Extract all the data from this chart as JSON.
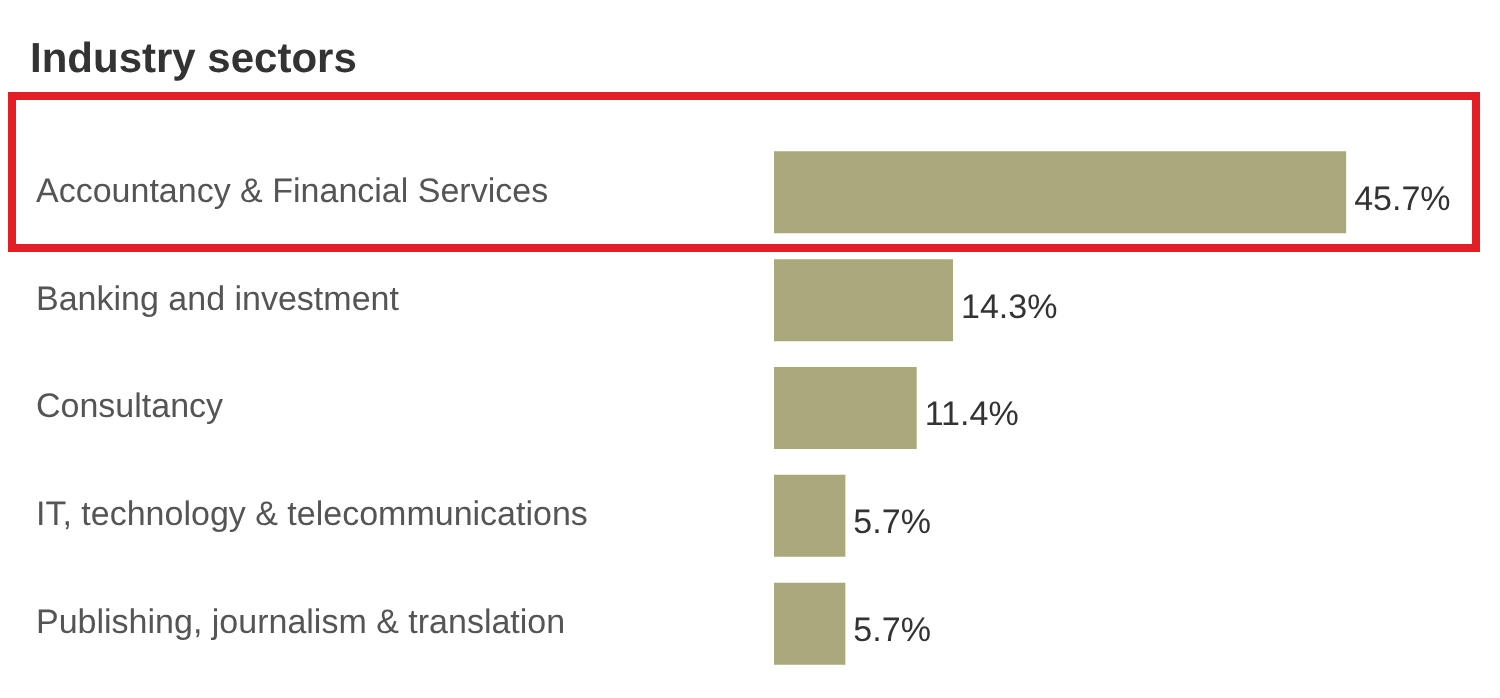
{
  "chart_data": {
    "type": "bar",
    "orientation": "horizontal",
    "title": "Industry sectors",
    "categories": [
      "Accountancy & Financial Services",
      "Banking and investment",
      "Consultancy",
      "IT, technology & telecommunications",
      "Publishing, journalism & translation"
    ],
    "values": [
      45.7,
      14.3,
      11.4,
      5.7,
      5.7
    ],
    "value_labels": [
      "45.7%",
      "14.3%",
      "11.4%",
      "5.7%",
      "5.7%"
    ],
    "color": "#aaa97c",
    "tick_labels": "y",
    "legend": false
  }
}
